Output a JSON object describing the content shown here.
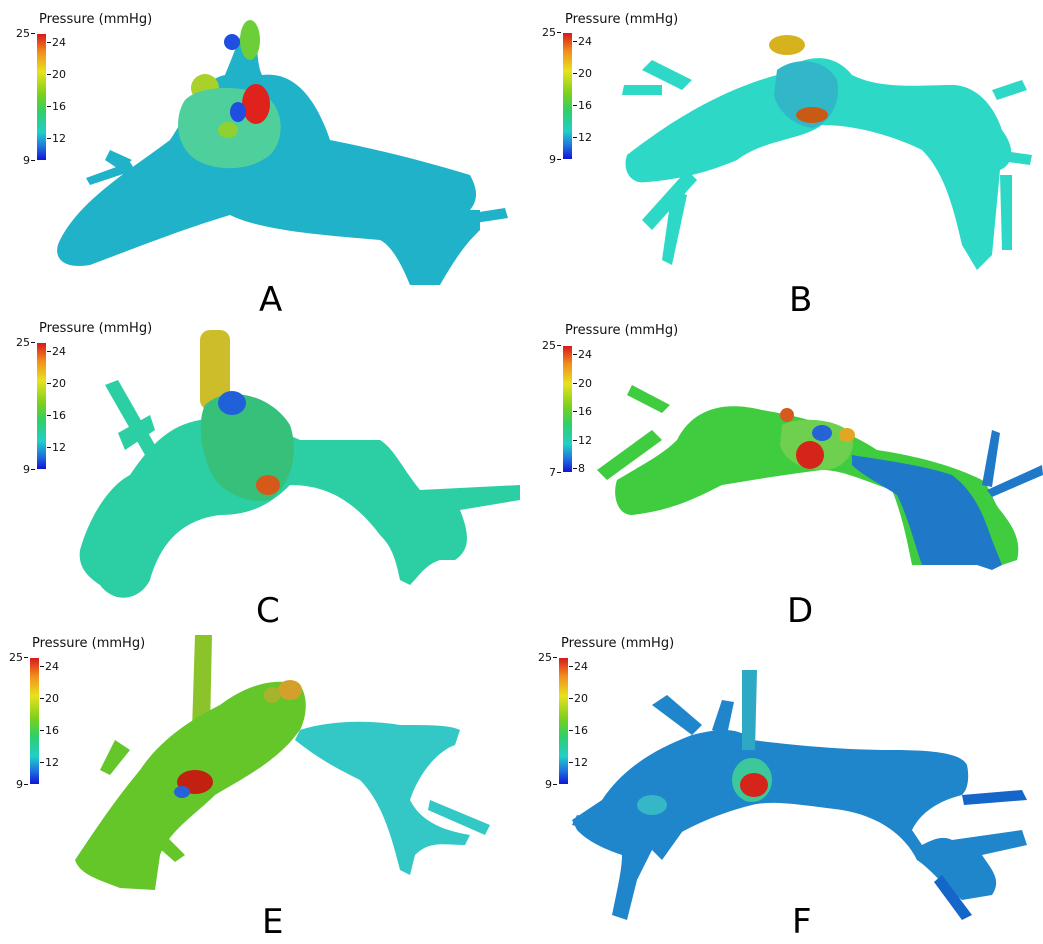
{
  "panels": [
    {
      "id": "A",
      "letter": "A",
      "title": "Pressure (mmHg)",
      "range_min": "9",
      "range_max": "25",
      "ticks": [
        "24",
        "20",
        "16",
        "12"
      ]
    },
    {
      "id": "B",
      "letter": "B",
      "title": "Pressure (mmHg)",
      "range_min": "9",
      "range_max": "25",
      "ticks": [
        "24",
        "20",
        "16",
        "12"
      ]
    },
    {
      "id": "C",
      "letter": "C",
      "title": "Pressure (mmHg)",
      "range_min": "9",
      "range_max": "25",
      "ticks": [
        "24",
        "20",
        "16",
        "12"
      ]
    },
    {
      "id": "D",
      "letter": "D",
      "title": "Pressure (mmHg)",
      "range_min": "7",
      "range_max": "25",
      "ticks": [
        "24",
        "20",
        "16",
        "12",
        "8"
      ]
    },
    {
      "id": "E",
      "letter": "E",
      "title": "Pressure (mmHg)",
      "range_min": "9",
      "range_max": "25",
      "ticks": [
        "24",
        "20",
        "16",
        "12"
      ]
    },
    {
      "id": "F",
      "letter": "F",
      "title": "Pressure (mmHg)",
      "range_min": "9",
      "range_max": "25",
      "ticks": [
        "24",
        "20",
        "16",
        "12"
      ]
    }
  ],
  "colors": {
    "low": "#1313d6",
    "mid_low": "#22cfc7",
    "mid": "#7ad01c",
    "mid_high": "#e8e21e",
    "high": "#d7191c"
  }
}
